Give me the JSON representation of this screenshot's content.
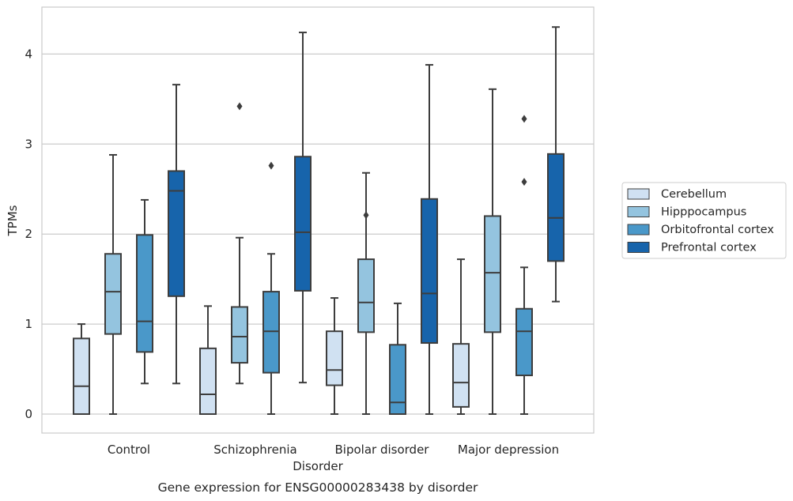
{
  "chart_data": {
    "type": "box",
    "title": "",
    "caption": "Gene expression for ENSG00000283438 by disorder",
    "xlabel": "Disorder",
    "ylabel": "TPMs",
    "categories": [
      "Control",
      "Schizophrenia",
      "Bipolar disorder",
      "Major depression"
    ],
    "yticks": [
      "0",
      "1",
      "2",
      "3",
      "4"
    ],
    "ylim": [
      -0.2,
      4.5
    ],
    "grid": "y",
    "legend_position": "right",
    "series": [
      {
        "name": "Cerebellum",
        "color": "#d0e1f2",
        "boxes": [
          {
            "whislo": 0.0,
            "q1": 0.0,
            "med": 0.31,
            "q3": 0.84,
            "whishi": 1.0,
            "fliers": []
          },
          {
            "whislo": 0.0,
            "q1": 0.0,
            "med": 0.22,
            "q3": 0.73,
            "whishi": 1.2,
            "fliers": []
          },
          {
            "whislo": 0.0,
            "q1": 0.32,
            "med": 0.49,
            "q3": 0.92,
            "whishi": 1.29,
            "fliers": []
          },
          {
            "whislo": 0.0,
            "q1": 0.08,
            "med": 0.35,
            "q3": 0.78,
            "whishi": 1.72,
            "fliers": []
          }
        ]
      },
      {
        "name": "Hipppocampus",
        "color": "#94c4df",
        "boxes": [
          {
            "whislo": 0.0,
            "q1": 0.89,
            "med": 1.36,
            "q3": 1.78,
            "whishi": 2.88,
            "fliers": []
          },
          {
            "whislo": 0.34,
            "q1": 0.57,
            "med": 0.86,
            "q3": 1.19,
            "whishi": 1.96,
            "fliers": [
              3.42
            ]
          },
          {
            "whislo": 0.0,
            "q1": 0.91,
            "med": 1.24,
            "q3": 1.72,
            "whishi": 2.68,
            "fliers": [
              2.21
            ]
          },
          {
            "whislo": 0.0,
            "q1": 0.91,
            "med": 1.57,
            "q3": 2.2,
            "whishi": 3.61,
            "fliers": []
          }
        ]
      },
      {
        "name": "Orbitofrontal cortex",
        "color": "#4a98c9",
        "boxes": [
          {
            "whislo": 0.34,
            "q1": 0.69,
            "med": 1.03,
            "q3": 1.99,
            "whishi": 2.38,
            "fliers": []
          },
          {
            "whislo": 0.0,
            "q1": 0.46,
            "med": 0.92,
            "q3": 1.36,
            "whishi": 1.78,
            "fliers": [
              2.76
            ]
          },
          {
            "whislo": 0.0,
            "q1": 0.0,
            "med": 0.13,
            "q3": 0.77,
            "whishi": 1.23,
            "fliers": []
          },
          {
            "whislo": 0.0,
            "q1": 0.43,
            "med": 0.92,
            "q3": 1.17,
            "whishi": 1.63,
            "fliers": [
              2.58,
              3.28
            ]
          }
        ]
      },
      {
        "name": "Prefrontal cortex",
        "color": "#1764ab",
        "boxes": [
          {
            "whislo": 0.34,
            "q1": 1.31,
            "med": 2.48,
            "q3": 2.7,
            "whishi": 3.66,
            "fliers": []
          },
          {
            "whislo": 0.35,
            "q1": 1.37,
            "med": 2.02,
            "q3": 2.86,
            "whishi": 4.24,
            "fliers": []
          },
          {
            "whislo": 0.0,
            "q1": 0.79,
            "med": 1.34,
            "q3": 2.39,
            "whishi": 3.88,
            "fliers": []
          },
          {
            "whislo": 1.25,
            "q1": 1.7,
            "med": 2.18,
            "q3": 2.89,
            "whishi": 4.3,
            "fliers": []
          }
        ]
      }
    ]
  }
}
